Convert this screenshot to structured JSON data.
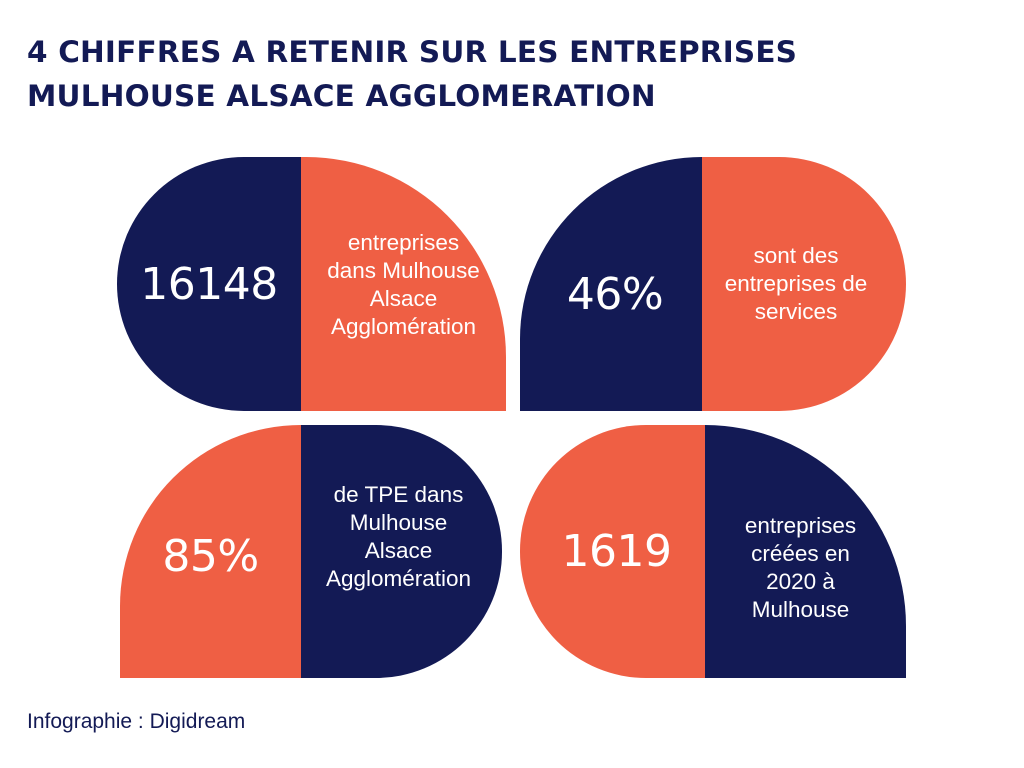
{
  "title": {
    "line1": "4 CHIFFRES A RETENIR SUR LES ENTREPRISES",
    "line2": "MULHOUSE ALSACE AGGLOMERATION"
  },
  "stats": [
    {
      "value": "16148",
      "lines": [
        "entreprises",
        "dans Mulhouse",
        "Alsace",
        "Agglomération"
      ]
    },
    {
      "value": "46%",
      "lines": [
        "sont des",
        "entreprises de",
        "services"
      ]
    },
    {
      "value": "85%",
      "lines": [
        "de TPE dans",
        "Mulhouse",
        "Alsace",
        "Agglomération"
      ]
    },
    {
      "value": "1619",
      "lines": [
        "entreprises",
        "créées en",
        "2020 à",
        "Mulhouse"
      ]
    }
  ],
  "colors": {
    "navy": "#131a55",
    "coral": "#ef5f44",
    "text_on_shape": "#ffffff"
  },
  "credit": "Infographie : Digidream"
}
